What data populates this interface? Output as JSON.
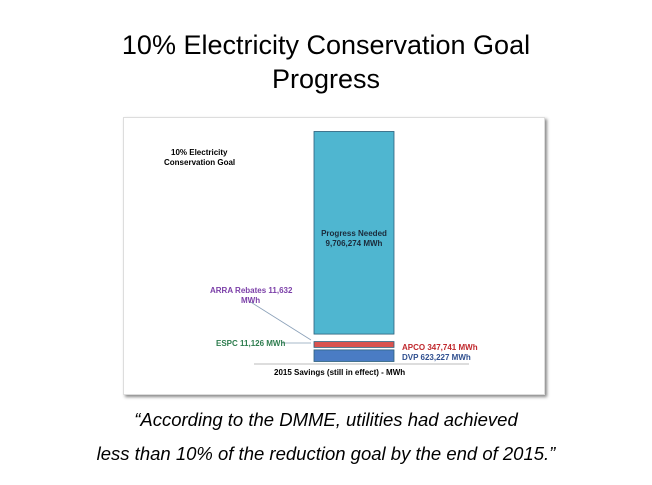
{
  "slide": {
    "title_line1": "10% Electricity Conservation Goal",
    "title_line2": "Progress",
    "quote_line1": "“According to the DMME, utilities had achieved",
    "quote_line2": "less than 10% of the reduction goal by the end of 2015.”"
  },
  "chart_data": {
    "type": "bar",
    "stacked": true,
    "title": "10% Electricity Conservation Goal",
    "title_line1": "10% Electricity",
    "title_line2": "Conservation Goal",
    "xlabel": "2015 Savings (still in effect) - MWh",
    "unit": "MWh",
    "series": [
      {
        "name": "DVP",
        "value": 623227,
        "label": "DVP 623,227 MWh",
        "color": "#4a7cc4"
      },
      {
        "name": "APCO",
        "value": 347741,
        "label": "APCO  347,741 MWh",
        "color": "#d9534f"
      },
      {
        "name": "ESPC",
        "value": 11126,
        "label": "ESPC 11,126 MWh",
        "color": "#2e7d4f"
      },
      {
        "name": "ARRA Rebates",
        "value": 11632,
        "label_line1": "ARRA Rebates  11,632",
        "label_line2": "MWh",
        "color": "#8e44ad"
      },
      {
        "name": "Progress Needed",
        "value": 9706274,
        "label_line1": "Progress Needed",
        "label_line2": "9,706,274  MWh",
        "color": "#4fb6d0"
      }
    ],
    "label_colors": {
      "DVP": "#2f4f8f",
      "APCO": "#c0282d",
      "ESPC": "#2e7d4f",
      "ARRA": "#7b3fa8",
      "Progress": "#1a2a3a"
    }
  }
}
